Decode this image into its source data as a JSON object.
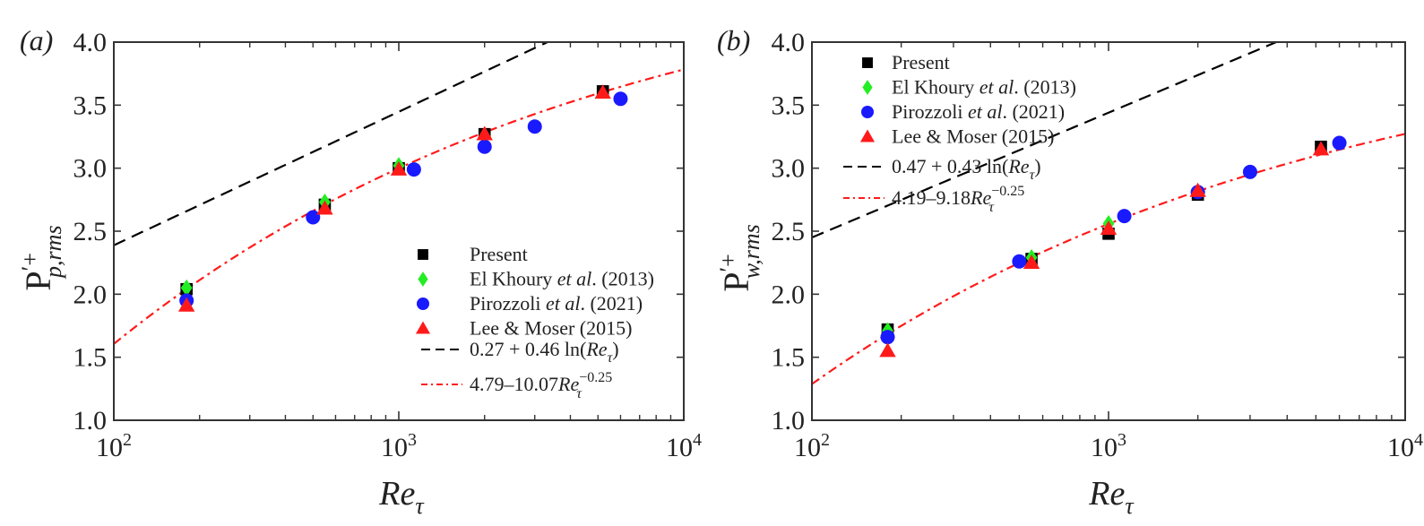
{
  "chart_data": [
    {
      "type": "scatter",
      "panel_label": "(a)",
      "xlabel": "Re_τ",
      "ylabel": "P'+ p,rms",
      "ylabel_main": "P",
      "ylabel_sup": "′+",
      "ylabel_sub": "p,rms",
      "xscale": "log",
      "xlim": [
        100,
        10000
      ],
      "ylim": [
        1.0,
        4.0
      ],
      "xticks": [
        {
          "v": 100,
          "base": "10",
          "exp": "2"
        },
        {
          "v": 1000,
          "base": "10",
          "exp": "3"
        },
        {
          "v": 10000,
          "base": "10",
          "exp": "4"
        }
      ],
      "yticks": [
        "1.0",
        "1.5",
        "2.0",
        "2.5",
        "3.0",
        "3.5",
        "4.0"
      ],
      "legend_position": "bottom-right",
      "series": [
        {
          "name": "Present",
          "marker": "square",
          "color": "#000000",
          "x": [
            180,
            550,
            1000,
            2000,
            5200
          ],
          "y": [
            2.04,
            2.71,
            3.0,
            3.27,
            3.61
          ]
        },
        {
          "name": "El Khoury et al. (2013)",
          "name_parts": [
            "El Khoury ",
            "et al",
            ". (2013)"
          ],
          "marker": "diamond",
          "color": "#22ee22",
          "x": [
            180,
            550,
            1000
          ],
          "y": [
            2.05,
            2.73,
            3.02
          ]
        },
        {
          "name": "Pirozzoli et al. (2021)",
          "name_parts": [
            "Pirozzoli ",
            "et al",
            ". (2021)"
          ],
          "marker": "circle",
          "color": "#1a1aff",
          "x": [
            180,
            500,
            1130,
            2000,
            3000,
            6000
          ],
          "y": [
            1.95,
            2.61,
            2.99,
            3.17,
            3.33,
            3.55
          ]
        },
        {
          "name": "Lee & Moser (2015)",
          "marker": "triangle",
          "color": "#ff1a1a",
          "x": [
            180,
            550,
            1000,
            2000,
            5200
          ],
          "y": [
            1.91,
            2.68,
            2.99,
            3.27,
            3.6
          ]
        }
      ],
      "fits": [
        {
          "name": "0.27 + 0.46 ln(Re_τ)",
          "label_pre": "0.27 + 0.46 ln(",
          "label_var": "Re",
          "label_sub": "τ",
          "label_post": ")",
          "kind": "log",
          "a": 0.27,
          "b": 0.46,
          "style": "dashed",
          "color": "#000000"
        },
        {
          "name": "4.79–10.07 Re_τ^−0.25",
          "label_pre": "4.79–10.07",
          "label_var": "Re",
          "label_sub": "τ",
          "label_sup": "−0.25",
          "kind": "power",
          "a": 4.79,
          "b": 10.07,
          "p": -0.25,
          "style": "dashdot",
          "color": "#ff1a1a"
        }
      ]
    },
    {
      "type": "scatter",
      "panel_label": "(b)",
      "xlabel": "Re_τ",
      "ylabel": "P'+ w,rms",
      "ylabel_main": "P",
      "ylabel_sup": "′+",
      "ylabel_sub": "w,rms",
      "xscale": "log",
      "xlim": [
        100,
        10000
      ],
      "ylim": [
        1.0,
        4.0
      ],
      "xticks": [
        {
          "v": 100,
          "base": "10",
          "exp": "2"
        },
        {
          "v": 1000,
          "base": "10",
          "exp": "3"
        },
        {
          "v": 10000,
          "base": "10",
          "exp": "4"
        }
      ],
      "yticks": [
        "1.0",
        "1.5",
        "2.0",
        "2.5",
        "3.0",
        "3.5",
        "4.0"
      ],
      "legend_position": "top-left",
      "series": [
        {
          "name": "Present",
          "marker": "square",
          "color": "#000000",
          "x": [
            180,
            550,
            1000,
            2000,
            5200
          ],
          "y": [
            1.72,
            2.28,
            2.48,
            2.79,
            3.17
          ]
        },
        {
          "name": "El Khoury et al. (2013)",
          "name_parts": [
            "El Khoury ",
            "et al",
            ". (2013)"
          ],
          "marker": "diamond",
          "color": "#22ee22",
          "x": [
            180,
            550,
            1000
          ],
          "y": [
            1.71,
            2.29,
            2.56
          ]
        },
        {
          "name": "Pirozzoli et al. (2021)",
          "name_parts": [
            "Pirozzoli ",
            "et al",
            ". (2021)"
          ],
          "marker": "circle",
          "color": "#1a1aff",
          "x": [
            180,
            500,
            1130,
            2000,
            3000,
            6000
          ],
          "y": [
            1.66,
            2.26,
            2.62,
            2.81,
            2.97,
            3.2
          ]
        },
        {
          "name": "Lee & Moser (2015)",
          "marker": "triangle",
          "color": "#ff1a1a",
          "x": [
            180,
            550,
            1000,
            2000,
            5200
          ],
          "y": [
            1.55,
            2.25,
            2.52,
            2.82,
            3.15
          ]
        }
      ],
      "fits": [
        {
          "name": "0.47 + 0.43 ln(Re_τ)",
          "label_pre": "0.47 + 0.43 ln(",
          "label_var": "Re",
          "label_sub": "τ",
          "label_post": ")",
          "kind": "log",
          "a": 0.47,
          "b": 0.43,
          "style": "dashed",
          "color": "#000000"
        },
        {
          "name": "4.19–9.18 Re_τ^−0.25",
          "label_pre": "4.19–9.18",
          "label_var": "Re",
          "label_sub": "τ",
          "label_sup": "−0.25",
          "kind": "power",
          "a": 4.19,
          "b": 9.18,
          "p": -0.25,
          "style": "dashdot",
          "color": "#ff1a1a"
        }
      ]
    }
  ]
}
